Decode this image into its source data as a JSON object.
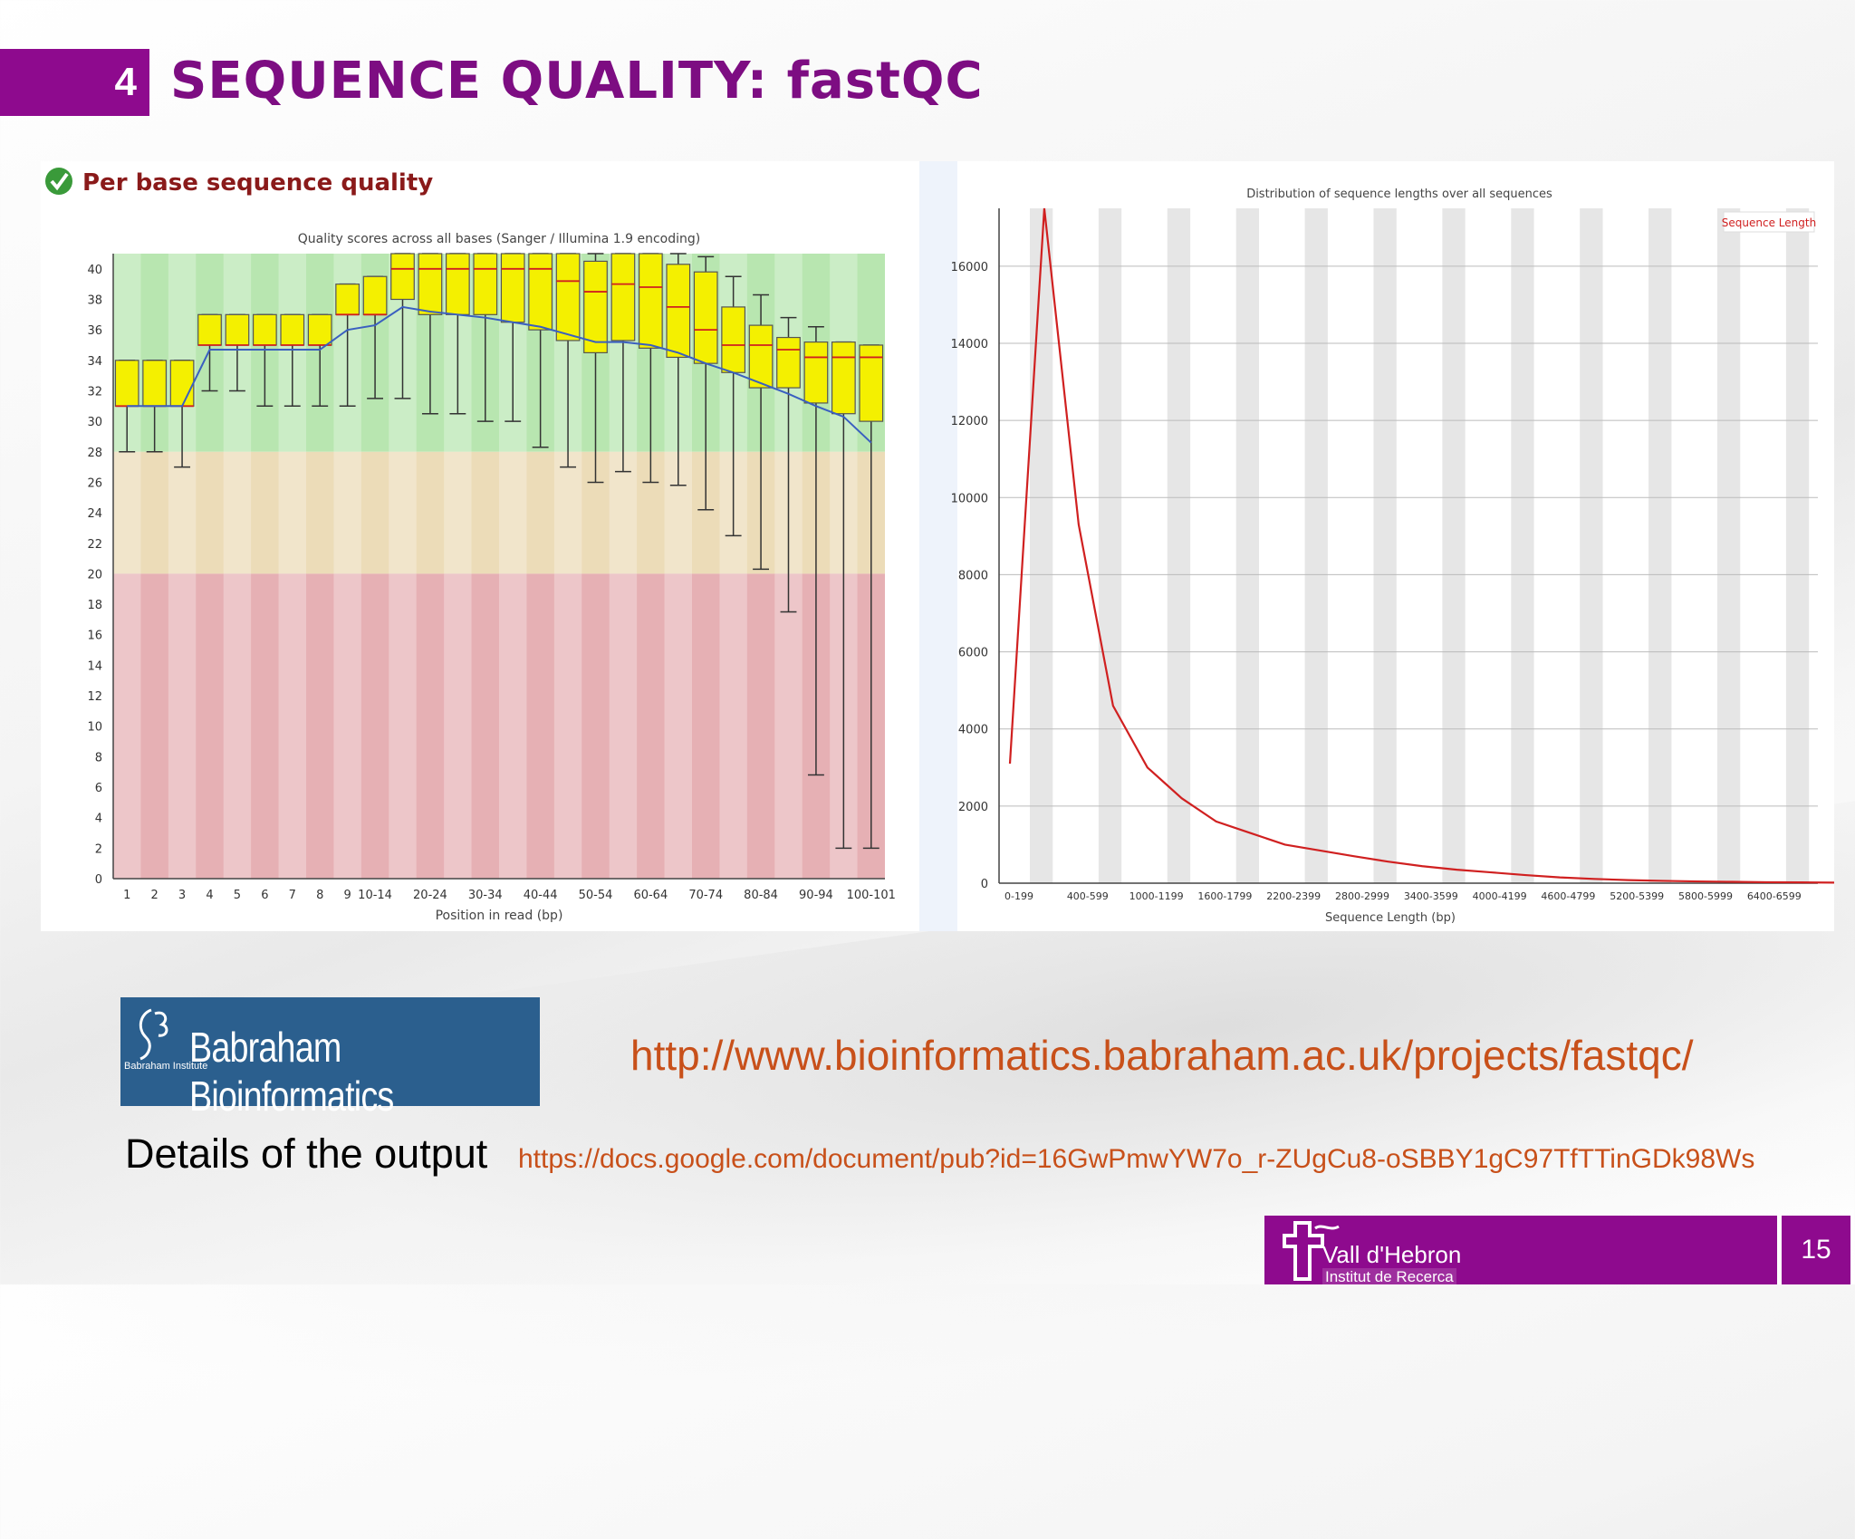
{
  "slide": {
    "section_number": "4",
    "title": "SEQUENCE QUALITY: fastQC",
    "page_number": "15"
  },
  "left_panel": {
    "heading": "Per base sequence quality"
  },
  "logos": {
    "babraham_name": "Babraham Bioinformatics",
    "babraham_mark_text": "Babraham Institute",
    "vhir_name": "Vall d'Hebron",
    "vhir_sub": "Institut de Recerca"
  },
  "links": {
    "fastqc_url": "http://www.bioinformatics.babraham.ac.uk/projects/fastqc/",
    "details_label": "Details of the output",
    "docs_url": "https://docs.google.com/document/pub?id=16GwPmwYW7o_r-ZUgCu8-oSBBY1gC97TfTTinGDk98Ws"
  },
  "colors": {
    "brand_purple": "#8e0a8e",
    "title_purple": "#7d0d82",
    "link_orange": "#c8501a",
    "good_zone": "#b8e6b0",
    "warn_zone": "#ecdcb8",
    "bad_zone": "#e6b0b4"
  },
  "chart_data": [
    {
      "type": "box",
      "title": "Quality scores across all bases (Sanger / Illumina 1.9 encoding)",
      "xlabel": "Position in read (bp)",
      "ylabel": "",
      "ylim": [
        0,
        41
      ],
      "yticks": [
        0,
        2,
        4,
        6,
        8,
        10,
        12,
        14,
        16,
        18,
        20,
        22,
        24,
        26,
        28,
        30,
        32,
        34,
        36,
        38,
        40
      ],
      "zones": [
        {
          "from": 28,
          "to": 41,
          "label": "good"
        },
        {
          "from": 20,
          "to": 28,
          "label": "warn"
        },
        {
          "from": 0,
          "to": 20,
          "label": "bad"
        }
      ],
      "categories": [
        "1",
        "2",
        "3",
        "4",
        "5",
        "6",
        "7",
        "8",
        "9",
        "10-14",
        "15-19",
        "20-24",
        "25-29",
        "30-34",
        "35-39",
        "40-44",
        "45-49",
        "50-54",
        "55-59",
        "60-64",
        "65-69",
        "70-74",
        "75-79",
        "80-84",
        "85-89",
        "90-94",
        "95-99",
        "100-101"
      ],
      "tick_labels": [
        "1",
        "2",
        "3",
        "4",
        "5",
        "6",
        "7",
        "8",
        "9",
        "10-14",
        "20-24",
        "30-34",
        "40-44",
        "50-54",
        "60-64",
        "70-74",
        "80-84",
        "90-94",
        "100-101"
      ],
      "boxes": [
        {
          "q1": 31,
          "median": 31,
          "q3": 34,
          "low": 28,
          "high": 34
        },
        {
          "q1": 31,
          "median": 31,
          "q3": 34,
          "low": 28,
          "high": 34
        },
        {
          "q1": 31,
          "median": 31,
          "q3": 34,
          "low": 27,
          "high": 34
        },
        {
          "q1": 35,
          "median": 35,
          "q3": 37,
          "low": 32,
          "high": 37
        },
        {
          "q1": 35,
          "median": 35,
          "q3": 37,
          "low": 32,
          "high": 37
        },
        {
          "q1": 35,
          "median": 35,
          "q3": 37,
          "low": 31,
          "high": 37
        },
        {
          "q1": 35,
          "median": 35,
          "q3": 37,
          "low": 31,
          "high": 37
        },
        {
          "q1": 35,
          "median": 35,
          "q3": 37,
          "low": 31,
          "high": 37
        },
        {
          "q1": 37,
          "median": 37,
          "q3": 39,
          "low": 31,
          "high": 39
        },
        {
          "q1": 37,
          "median": 37,
          "q3": 39.5,
          "low": 31.5,
          "high": 39.5
        },
        {
          "q1": 38,
          "median": 40,
          "q3": 41,
          "low": 31.5,
          "high": 41
        },
        {
          "q1": 37,
          "median": 40,
          "q3": 41,
          "low": 30.5,
          "high": 41
        },
        {
          "q1": 37,
          "median": 40,
          "q3": 41,
          "low": 30.5,
          "high": 41
        },
        {
          "q1": 37,
          "median": 40,
          "q3": 41,
          "low": 30,
          "high": 41
        },
        {
          "q1": 36.5,
          "median": 40,
          "q3": 41,
          "low": 30,
          "high": 41
        },
        {
          "q1": 36,
          "median": 40,
          "q3": 41,
          "low": 28.3,
          "high": 41
        },
        {
          "q1": 35.3,
          "median": 39.2,
          "q3": 41,
          "low": 27,
          "high": 41
        },
        {
          "q1": 34.5,
          "median": 38.5,
          "q3": 40.5,
          "low": 26,
          "high": 41
        },
        {
          "q1": 35.3,
          "median": 39,
          "q3": 41,
          "low": 26.7,
          "high": 41
        },
        {
          "q1": 34.8,
          "median": 38.8,
          "q3": 41,
          "low": 26,
          "high": 41
        },
        {
          "q1": 34.2,
          "median": 37.5,
          "q3": 40.3,
          "low": 25.8,
          "high": 41
        },
        {
          "q1": 33.8,
          "median": 36,
          "q3": 39.8,
          "low": 24.2,
          "high": 40.8
        },
        {
          "q1": 33.2,
          "median": 35,
          "q3": 37.5,
          "low": 22.5,
          "high": 39.5
        },
        {
          "q1": 32.2,
          "median": 35,
          "q3": 36.3,
          "low": 20.3,
          "high": 38.3
        },
        {
          "q1": 32.2,
          "median": 34.7,
          "q3": 35.5,
          "low": 17.5,
          "high": 36.8
        },
        {
          "q1": 31.2,
          "median": 34.2,
          "q3": 35.2,
          "low": 6.8,
          "high": 36.2
        },
        {
          "q1": 30.5,
          "median": 34.2,
          "q3": 35.2,
          "low": 2,
          "high": 35.2
        },
        {
          "q1": 30,
          "median": 34.2,
          "q3": 35,
          "low": 2,
          "high": 35
        }
      ],
      "mean_line": [
        31,
        31,
        31,
        34.7,
        34.7,
        34.7,
        34.7,
        34.7,
        36,
        36.3,
        37.5,
        37.2,
        37,
        36.8,
        36.5,
        36.2,
        35.7,
        35.2,
        35.2,
        35,
        34.5,
        33.8,
        33.2,
        32.5,
        31.8,
        31,
        30.3,
        28.6
      ]
    },
    {
      "type": "line",
      "title": "Distribution of sequence lengths over all sequences",
      "xlabel": "Sequence Length (bp)",
      "ylabel": "",
      "ylim": [
        0,
        17500
      ],
      "yticks": [
        0,
        2000,
        4000,
        6000,
        8000,
        10000,
        12000,
        14000,
        16000
      ],
      "x_tick_labels": [
        "0-199",
        "400-599",
        "1000-1199",
        "1600-1799",
        "2200-2399",
        "2800-2999",
        "3400-3599",
        "4000-4199",
        "4600-4799",
        "5200-5399",
        "5800-5999",
        "6400-6599"
      ],
      "series": [
        {
          "name": "Sequence Length",
          "values": [
            3100,
            17500,
            9300,
            4600,
            3000,
            2200,
            1600,
            1300,
            1000,
            850,
            700,
            560,
            440,
            350,
            280,
            210,
            150,
            110,
            80,
            60,
            45,
            35,
            25,
            20,
            15,
            12,
            10,
            8,
            6,
            5,
            4,
            3,
            3,
            2
          ]
        }
      ]
    }
  ]
}
